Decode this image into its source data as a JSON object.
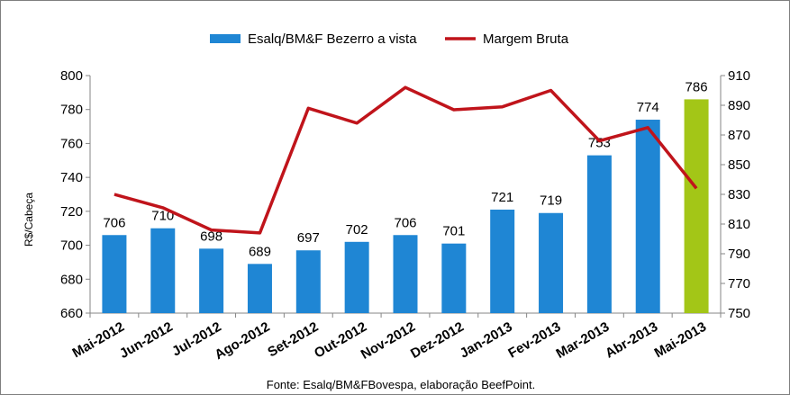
{
  "chart_data": {
    "type": "bar",
    "categories": [
      "Mai-2012",
      "Jun-2012",
      "Jul-2012",
      "Ago-2012",
      "Set-2012",
      "Out-2012",
      "Nov-2012",
      "Dez-2012",
      "Jan-2013",
      "Fev-2013",
      "Mar-2013",
      "Abr-2013",
      "Mai-2013"
    ],
    "series": [
      {
        "name": "Esalq/BM&F Bezerro a vista",
        "type": "bar",
        "axis": "left",
        "color": "#1f86d4",
        "highlight_color": "#a3c617",
        "values": [
          706,
          710,
          698,
          689,
          697,
          702,
          706,
          701,
          721,
          719,
          753,
          774,
          786
        ]
      },
      {
        "name": "Margem Bruta",
        "type": "line",
        "axis": "right",
        "color": "#c0141b",
        "values": [
          830,
          821,
          806,
          804,
          888,
          878,
          902,
          887,
          889,
          900,
          866,
          875,
          834
        ]
      }
    ],
    "ylabel": "R$/Cabeça",
    "ylim_left": [
      660,
      800
    ],
    "yticks_left": [
      660,
      680,
      700,
      720,
      740,
      760,
      780,
      800
    ],
    "ylim_right": [
      750,
      910
    ],
    "yticks_right": [
      750,
      770,
      790,
      810,
      830,
      850,
      870,
      890,
      910
    ],
    "source": "Fonte: Esalq/BM&FBovespa, elaboração BeefPoint.",
    "legend_position": "top",
    "grid": false
  }
}
